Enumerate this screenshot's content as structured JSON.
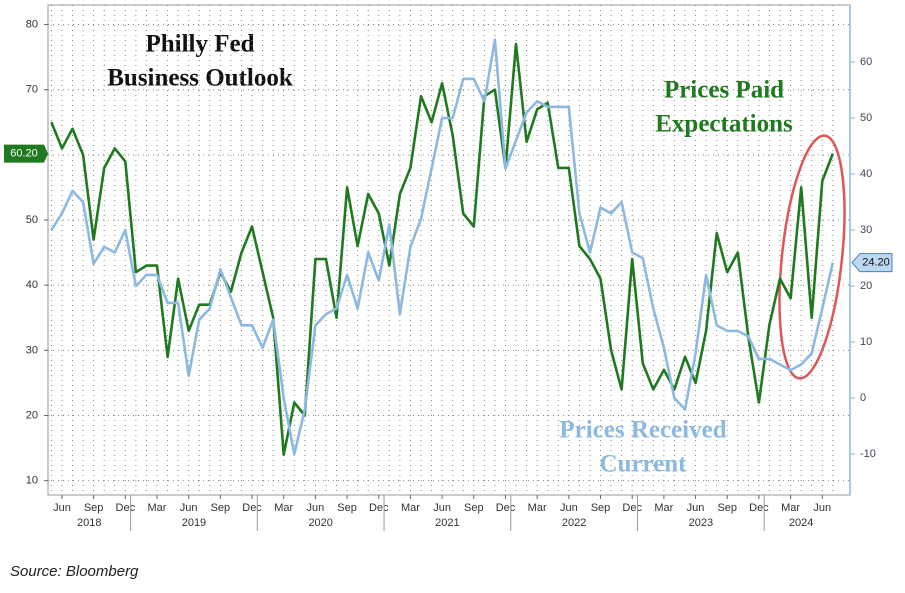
{
  "chart_data": {
    "type": "line",
    "title": [
      "Philly Fed",
      "Business Outlook"
    ],
    "source": "Source: Bloomberg",
    "categories": [
      null,
      "Jun",
      null,
      null,
      "Sep",
      null,
      null,
      "Dec",
      null,
      null,
      "Mar",
      null,
      null,
      "Jun",
      null,
      null,
      "Sep",
      null,
      null,
      "Dec",
      null,
      null,
      "Mar",
      null,
      null,
      "Jun",
      null,
      null,
      "Sep",
      null,
      null,
      "Dec",
      null,
      null,
      "Mar",
      null,
      null,
      "Jun",
      null,
      null,
      "Sep",
      null,
      null,
      "Dec",
      null,
      null,
      "Mar",
      null,
      null,
      "Jun",
      null,
      null,
      "Sep",
      null,
      null,
      "Dec",
      null,
      null,
      "Mar",
      null,
      null,
      "Jun",
      null,
      null,
      "Sep",
      null,
      null,
      "Dec",
      null,
      null,
      "Mar",
      null,
      null,
      "Jun",
      null
    ],
    "years": [
      "2018",
      "2019",
      "2020",
      "2021",
      "2022",
      "2023",
      "2024"
    ],
    "ylim": [
      7.8,
      83
    ],
    "yticks": [
      10,
      20,
      30,
      40,
      50,
      60,
      70,
      80
    ],
    "y2lim": [
      -17.3,
      70.2
    ],
    "y2ticks": [
      -10,
      0,
      10,
      20,
      30,
      40,
      50,
      60
    ],
    "grid": true,
    "series": [
      {
        "name": [
          "Prices Paid",
          "Expectations"
        ],
        "color": "#1f7a1f",
        "axis": "y",
        "values": [
          65,
          61,
          64,
          60,
          47,
          58,
          61,
          59,
          42,
          43,
          43,
          29,
          41,
          33,
          37,
          37,
          42,
          39,
          45,
          49,
          42,
          35,
          14,
          22,
          20,
          44,
          44,
          35,
          55,
          46,
          54,
          51,
          43,
          54,
          58,
          69,
          65,
          71,
          63,
          51,
          49,
          69,
          70,
          58,
          77,
          62,
          67,
          68,
          58,
          58,
          46,
          44,
          41,
          30,
          24,
          44,
          28,
          24,
          27,
          24,
          29,
          25,
          33,
          48,
          42,
          45,
          32,
          22,
          34,
          41,
          38,
          55,
          35,
          56,
          60.2
        ],
        "value_labels": {
          "74": "60.20"
        }
      },
      {
        "name": [
          "Prices Received",
          "Current"
        ],
        "color": "#8bb9e2",
        "axis": "y2",
        "values": [
          30,
          33,
          37,
          35,
          24,
          27,
          26,
          30,
          20,
          22,
          22,
          17,
          17,
          4,
          14,
          16,
          23,
          18,
          13,
          13,
          9,
          14,
          0,
          -10,
          -2,
          13,
          15,
          16,
          22,
          16,
          26,
          21,
          31,
          15,
          27,
          32,
          41,
          50,
          50,
          57,
          57,
          53,
          64,
          41,
          46,
          51,
          53,
          52,
          52,
          52,
          33,
          26,
          34,
          33,
          35,
          26,
          25,
          16,
          9,
          0,
          -2,
          8,
          22,
          13,
          12,
          12,
          11,
          7,
          7,
          6,
          5,
          6,
          8,
          16,
          24.2
        ],
        "value_labels": {
          "74": "24.20"
        }
      }
    ]
  }
}
